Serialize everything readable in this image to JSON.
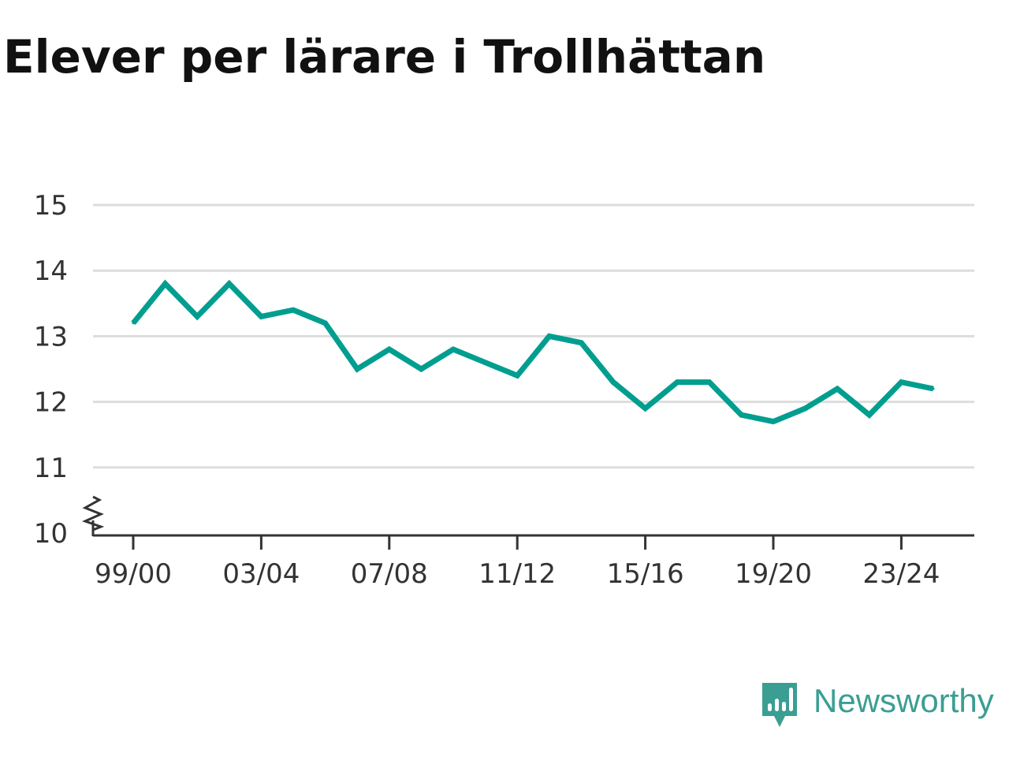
{
  "chart_data": {
    "type": "line",
    "title": "Elever per lärare i Trollhättan",
    "xlabel": "",
    "ylabel": "",
    "ylim": [
      10,
      15
    ],
    "yticks": [
      10,
      11,
      12,
      13,
      14,
      15
    ],
    "grid": true,
    "axis_break": true,
    "x_tick_labels": [
      "99/00",
      "03/04",
      "07/08",
      "11/12",
      "15/16",
      "19/20",
      "23/24"
    ],
    "x": [
      "99/00",
      "00/01",
      "01/02",
      "02/03",
      "03/04",
      "04/05",
      "05/06",
      "06/07",
      "07/08",
      "08/09",
      "09/10",
      "10/11",
      "11/12",
      "12/13",
      "13/14",
      "14/15",
      "15/16",
      "16/17",
      "17/18",
      "18/19",
      "19/20",
      "20/21",
      "21/22",
      "22/23",
      "23/24",
      "24/25"
    ],
    "series": [
      {
        "color": "#009e8f",
        "values": [
          13.2,
          13.8,
          13.3,
          13.8,
          13.3,
          13.4,
          13.2,
          12.5,
          12.8,
          12.5,
          12.8,
          12.6,
          12.4,
          13.0,
          12.9,
          12.3,
          11.9,
          12.3,
          12.3,
          11.8,
          11.7,
          11.9,
          12.2,
          11.8,
          12.3,
          12.2
        ]
      }
    ]
  },
  "brand": {
    "name": "Newsworthy",
    "color": "#3a9e93",
    "icon": "newsworthy-logo-icon"
  }
}
